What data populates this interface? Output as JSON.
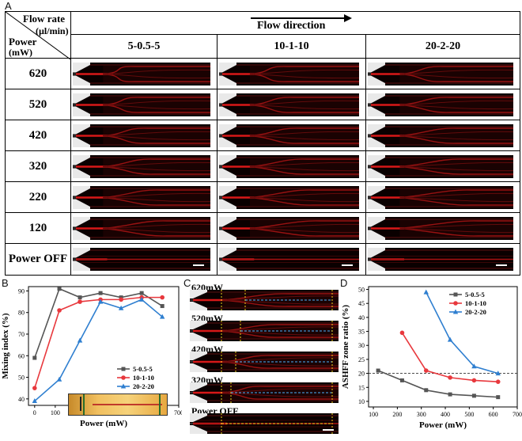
{
  "panels": {
    "a": "A",
    "b": "B",
    "c": "C",
    "d": "D"
  },
  "table": {
    "header_flow": "Flow rate",
    "header_unit": "(µl/min)",
    "header_power": "Power",
    "header_power_unit": "(mW)",
    "flow_direction": "Flow direction",
    "columns": [
      "5-0.5-5",
      "10-1-10",
      "20-2-20"
    ],
    "rows": [
      "620",
      "520",
      "420",
      "320",
      "220",
      "120",
      "Power OFF"
    ]
  },
  "panel_c": {
    "labels": [
      "620mW",
      "520mW",
      "420mW",
      "320mW",
      "Power OFF"
    ]
  },
  "colors": {
    "series1": "#555555",
    "series2": "#e8383d",
    "series3": "#2f7fd0",
    "channel": "#d61818"
  },
  "chart_data": [
    {
      "type": "line",
      "title": "",
      "xlabel": "Power (mW)",
      "ylabel": "Mixing index (%)",
      "xlim": [
        -30,
        700
      ],
      "ylim": [
        37,
        92
      ],
      "xticks": [
        0,
        100,
        200,
        300,
        400,
        500,
        600,
        700
      ],
      "yticks": [
        40,
        50,
        60,
        70,
        80,
        90
      ],
      "legend_position": "lower-right",
      "series": [
        {
          "name": "5-0.5-5",
          "color": "#555555",
          "marker": "square",
          "x": [
            0,
            120,
            220,
            320,
            420,
            520,
            620
          ],
          "y": [
            59,
            91,
            87,
            89,
            87,
            89,
            83
          ]
        },
        {
          "name": "10-1-10",
          "color": "#e8383d",
          "marker": "circle",
          "x": [
            0,
            120,
            220,
            320,
            420,
            520,
            620
          ],
          "y": [
            45,
            81,
            85,
            86,
            86,
            87,
            87
          ]
        },
        {
          "name": "20-2-20",
          "color": "#2f7fd0",
          "marker": "triangle",
          "x": [
            0,
            120,
            220,
            320,
            420,
            520,
            620
          ],
          "y": [
            39,
            49,
            67,
            85,
            82,
            86,
            78
          ]
        }
      ]
    },
    {
      "type": "line",
      "title": "",
      "xlabel": "Power (mW)",
      "ylabel": "ASHFF zone ratio (%)",
      "xlim": [
        80,
        700
      ],
      "ylim": [
        8,
        51
      ],
      "xticks": [
        100,
        200,
        300,
        400,
        500,
        600,
        700
      ],
      "yticks": [
        10,
        15,
        20,
        25,
        30,
        35,
        40,
        45,
        50
      ],
      "reference_line_y": 20,
      "legend_position": "top-right",
      "series": [
        {
          "name": "5-0.5-5",
          "color": "#555555",
          "marker": "square",
          "x": [
            120,
            220,
            320,
            420,
            520,
            620
          ],
          "y": [
            21,
            17.5,
            14,
            12.5,
            12,
            11.5
          ]
        },
        {
          "name": "10-1-10",
          "color": "#e8383d",
          "marker": "circle",
          "x": [
            220,
            320,
            420,
            520,
            620
          ],
          "y": [
            34.5,
            21,
            18.5,
            17.5,
            17
          ]
        },
        {
          "name": "20-2-20",
          "color": "#2f7fd0",
          "marker": "triangle",
          "x": [
            320,
            420,
            520,
            620
          ],
          "y": [
            49,
            32,
            22.5,
            20
          ]
        }
      ]
    }
  ]
}
